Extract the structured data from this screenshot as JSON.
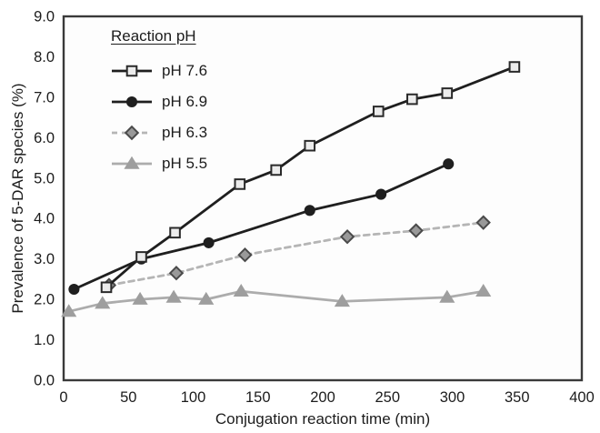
{
  "figure": {
    "background": "#ffffff"
  },
  "chart_data": {
    "type": "line",
    "title": "",
    "xlabel": "Conjugation reaction time (min)",
    "ylabel": "Prevalence of 5-DAR species (%)",
    "xlim": [
      0,
      400
    ],
    "ylim": [
      0,
      9
    ],
    "xticks": [
      0,
      50,
      100,
      150,
      200,
      250,
      300,
      350,
      400
    ],
    "yticks": [
      "0.0",
      "1.0",
      "2.0",
      "3.0",
      "4.0",
      "5.0",
      "6.0",
      "7.0",
      "8.0",
      "9.0"
    ],
    "grid": false,
    "legend_position": "upper-left-inside",
    "legend_title": "Reaction pH",
    "plot_border_color": "#3a3a3a",
    "plot_background": "#fdfdfd",
    "tick_label_color": "#1c1c1c",
    "series": [
      {
        "name": "pH 7.6",
        "marker": "square",
        "line_style": "solid",
        "line_color": "#1f1f1f",
        "marker_fill": "#ececec",
        "marker_stroke": "#2a2a2a",
        "x": [
          33,
          60,
          86,
          136,
          164,
          190,
          243,
          269,
          296,
          348
        ],
        "y": [
          2.3,
          3.05,
          3.65,
          4.85,
          5.2,
          5.8,
          6.65,
          6.95,
          7.1,
          7.75
        ]
      },
      {
        "name": "pH 6.9",
        "marker": "circle",
        "line_style": "solid",
        "line_color": "#1f1f1f",
        "marker_fill": "#1f1f1f",
        "marker_stroke": "#1f1f1f",
        "x": [
          8,
          60,
          112,
          190,
          245,
          297
        ],
        "y": [
          2.25,
          3.0,
          3.4,
          4.2,
          4.6,
          5.35
        ]
      },
      {
        "name": "pH 6.3",
        "marker": "diamond",
        "line_style": "dashed",
        "line_color": "#b5b5b5",
        "marker_fill": "#999999",
        "marker_stroke": "#4a4a4a",
        "x": [
          35,
          87,
          140,
          219,
          272,
          324
        ],
        "y": [
          2.35,
          2.65,
          3.1,
          3.55,
          3.7,
          3.9
        ]
      },
      {
        "name": "pH 5.5",
        "marker": "triangle",
        "line_style": "solid",
        "line_color": "#acacac",
        "marker_fill": "#9e9e9e",
        "marker_stroke": "#9e9e9e",
        "x": [
          4,
          30,
          59,
          85,
          110,
          137,
          215,
          296,
          324
        ],
        "y": [
          1.7,
          1.9,
          2.0,
          2.05,
          2.0,
          2.2,
          1.95,
          2.05,
          2.2
        ]
      }
    ]
  }
}
